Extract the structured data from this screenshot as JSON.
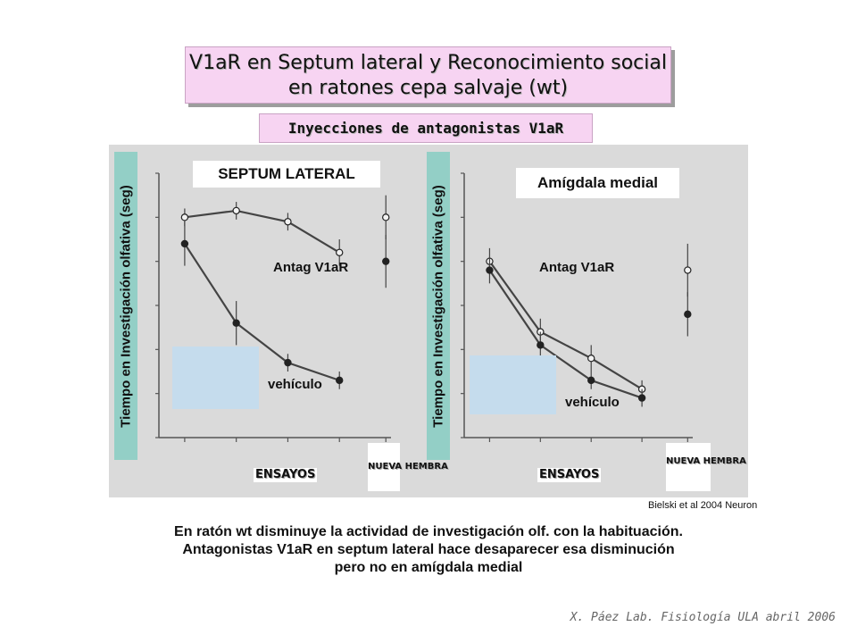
{
  "title_lines": [
    "V1aR en Septum lateral y Reconocimiento social",
    "en ratones cepa salvaje (wt)"
  ],
  "subtitle": "Inyecciones de antagonistas V1aR",
  "chart_data": [
    {
      "type": "line",
      "title": "SEPTUM LATERAL",
      "ylabel": "Tiempo en Investigación olfativa (seg)",
      "xlabel": "ENSAYOS",
      "x": [
        1,
        2,
        3,
        4
      ],
      "xlim": [
        0.5,
        5
      ],
      "ylim": [
        0,
        60
      ],
      "extra_x_label": "NUEVA HEMBRA",
      "series": [
        {
          "name": "Antag V1aR",
          "marker": "open",
          "values": [
            50,
            51.5,
            49,
            42
          ],
          "errors": [
            2,
            2,
            2,
            3
          ],
          "new_female": 50,
          "new_female_error": 5
        },
        {
          "name": "vehículo",
          "marker": "filled",
          "values": [
            44,
            26,
            17,
            13
          ],
          "errors": [
            5,
            5,
            2,
            2
          ],
          "new_female": 40,
          "new_female_error": 6
        }
      ]
    },
    {
      "type": "line",
      "title": "Amígdala medial",
      "ylabel": "Tiempo en Investigación olfativa (seg)",
      "xlabel": "ENSAYOS",
      "x": [
        1,
        2,
        3,
        4
      ],
      "xlim": [
        0.5,
        5
      ],
      "ylim": [
        0,
        60
      ],
      "extra_x_label": "NUEVA HEMBRA",
      "series": [
        {
          "name": "Antag V1aR",
          "marker": "open",
          "values": [
            40,
            24,
            18,
            11
          ],
          "errors": [
            3,
            3,
            3,
            2
          ],
          "new_female": 38,
          "new_female_error": 6
        },
        {
          "name": "vehículo",
          "marker": "filled",
          "values": [
            38,
            21,
            13,
            9
          ],
          "errors": [
            3,
            3,
            2,
            2
          ],
          "new_female": 28,
          "new_female_error": 5
        }
      ]
    }
  ],
  "citation": "Bielski et al 2004 Neuron",
  "caption_lines": [
    "En ratón wt disminuye la actividad de investigación olf. con la habituación.",
    "Antagonistas V1aR en septum lateral hace desaparecer esa disminución",
    "pero no en amígdala medial"
  ],
  "footer": "X. Páez  Lab. Fisiología ULA abril 2006",
  "colors": {
    "title_bg": "#f7d4f2",
    "figure_bg": "#dadada",
    "ylabel_bg": "#93cfc6",
    "patch": "#c5dced",
    "line": "#444444"
  }
}
